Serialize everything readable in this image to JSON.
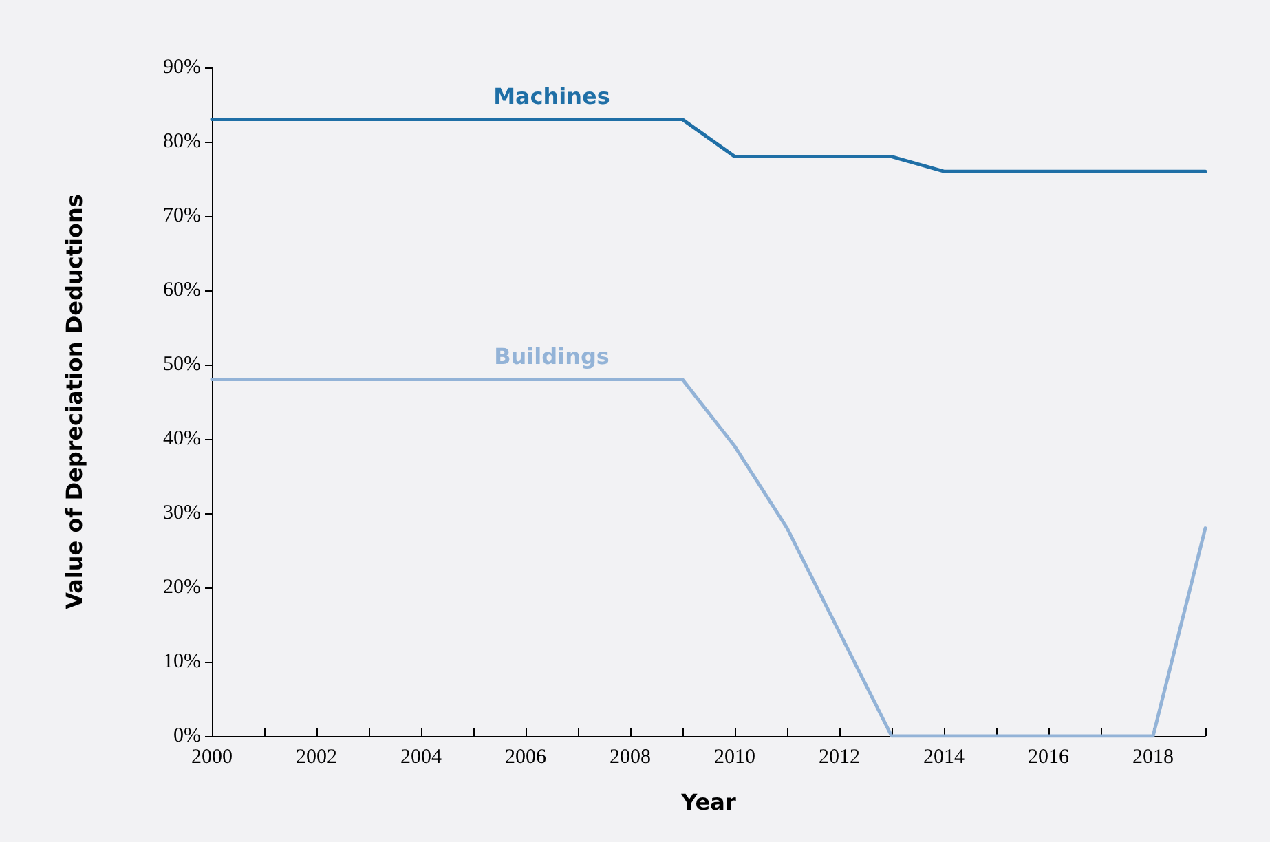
{
  "chart_data": {
    "type": "line",
    "xlabel": "Year",
    "ylabel": "Value of Depreciation Deductions",
    "x": [
      2000,
      2001,
      2002,
      2003,
      2004,
      2005,
      2006,
      2007,
      2008,
      2009,
      2010,
      2011,
      2012,
      2013,
      2014,
      2015,
      2016,
      2017,
      2018,
      2019
    ],
    "series": [
      {
        "name": "Machines",
        "color": "#1f6fa6",
        "values": [
          83,
          83,
          83,
          83,
          83,
          83,
          83,
          83,
          83,
          83,
          78,
          78,
          78,
          78,
          76,
          76,
          76,
          76,
          76,
          76
        ]
      },
      {
        "name": "Buildings",
        "color": "#93b3d7",
        "values": [
          48,
          48,
          48,
          48,
          48,
          48,
          48,
          48,
          48,
          48,
          39,
          28,
          14,
          0,
          0,
          0,
          0,
          0,
          0,
          28
        ]
      }
    ],
    "xlim": [
      2000,
      2019
    ],
    "xticks": [
      2000,
      {
        "value": 2001,
        "label": null
      },
      2002,
      {
        "value": 2003,
        "label": null
      },
      2004,
      {
        "value": 2005,
        "label": null
      },
      2006,
      {
        "value": 2007,
        "label": null
      },
      2008,
      {
        "value": 2009,
        "label": null
      },
      2010,
      {
        "value": 2011,
        "label": null
      },
      2012,
      {
        "value": 2013,
        "label": null
      },
      2014,
      {
        "value": 2015,
        "label": null
      },
      2016,
      {
        "value": 2017,
        "label": null
      },
      2018,
      {
        "value": 2019,
        "label": null
      }
    ],
    "ylim": [
      0,
      90
    ],
    "yticks": [
      {
        "value": 0,
        "label": "0%"
      },
      {
        "value": 10,
        "label": "10%"
      },
      {
        "value": 20,
        "label": "20%"
      },
      {
        "value": 30,
        "label": "30%"
      },
      {
        "value": 40,
        "label": "40%"
      },
      {
        "value": 50,
        "label": "50%"
      },
      {
        "value": 60,
        "label": "60%"
      },
      {
        "value": 70,
        "label": "70%"
      },
      {
        "value": 80,
        "label": "80%"
      },
      {
        "value": 90,
        "label": "90%"
      }
    ],
    "grid": false,
    "legend": false,
    "marker": "none",
    "line_style": "solid"
  }
}
